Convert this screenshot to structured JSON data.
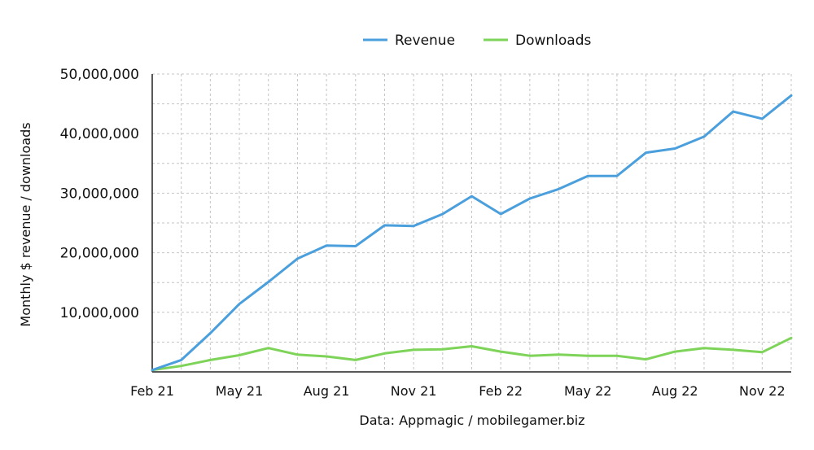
{
  "chart_data": {
    "type": "line",
    "ylabel": "Monthly $ revenue / downloads",
    "source": "Data: Appmagic / mobilegamer.biz",
    "legend_position": "top-center",
    "grid": true,
    "ylim": [
      0,
      50000000
    ],
    "y_ticks": [
      {
        "value": 10000000,
        "label": "10,000,000"
      },
      {
        "value": 20000000,
        "label": "20,000,000"
      },
      {
        "value": 30000000,
        "label": "30,000,000"
      },
      {
        "value": 40000000,
        "label": "40,000,000"
      },
      {
        "value": 50000000,
        "label": "50,000,000"
      }
    ],
    "x": [
      "Feb 21",
      "Mar 21",
      "Apr 21",
      "May 21",
      "Jun 21",
      "Jul 21",
      "Aug 21",
      "Sep 21",
      "Oct 21",
      "Nov 21",
      "Dec 21",
      "Jan 22",
      "Feb 22",
      "Mar 22",
      "Apr 22",
      "May 22",
      "Jun 22",
      "Jul 22",
      "Aug 22",
      "Sep 22",
      "Oct 22",
      "Nov 22",
      "Dec 22"
    ],
    "x_tick_labels": [
      {
        "index": 0,
        "label": "Feb 21"
      },
      {
        "index": 3,
        "label": "May 21"
      },
      {
        "index": 6,
        "label": "Aug 21"
      },
      {
        "index": 9,
        "label": "Nov 21"
      },
      {
        "index": 12,
        "label": "Feb 22"
      },
      {
        "index": 15,
        "label": "May 22"
      },
      {
        "index": 18,
        "label": "Aug 22"
      },
      {
        "index": 21,
        "label": "Nov 22"
      }
    ],
    "series": [
      {
        "name": "Revenue",
        "color": "#4a9fdc",
        "values": [
          300000,
          2000000,
          6500000,
          11400000,
          15100000,
          19000000,
          21200000,
          21100000,
          24600000,
          24500000,
          26500000,
          29500000,
          26500000,
          29100000,
          30700000,
          32900000,
          32900000,
          36800000,
          37500000,
          39500000,
          43700000,
          42500000,
          46400000
        ]
      },
      {
        "name": "Downloads",
        "color": "#7ed359",
        "values": [
          300000,
          1000000,
          2000000,
          2800000,
          4000000,
          2900000,
          2600000,
          2000000,
          3100000,
          3700000,
          3800000,
          4300000,
          3400000,
          2700000,
          2900000,
          2700000,
          2700000,
          2100000,
          3400000,
          4000000,
          3700000,
          3300000,
          5700000
        ]
      }
    ]
  }
}
